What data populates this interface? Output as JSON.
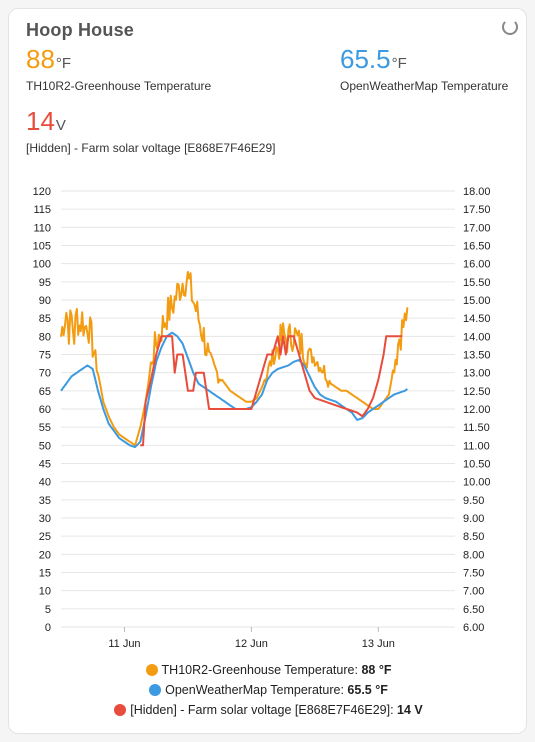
{
  "card": {
    "title": "Hoop House"
  },
  "entities": [
    {
      "value": "88",
      "unit": "°F",
      "label": "TH10R2-Greenhouse Temperature",
      "color": "#f39c12"
    },
    {
      "value": "65.5",
      "unit": "°F",
      "label": "OpenWeatherMap Temperature",
      "color": "#3b9ae1"
    },
    {
      "value": "14",
      "unit": "V",
      "label": "[Hidden] - Farm solar voltage [E868E7F46E29]",
      "color": "#e74c3c"
    }
  ],
  "legend": [
    {
      "name": "TH10R2-Greenhouse Temperature",
      "value": "88 °F",
      "color": "#f39c12"
    },
    {
      "name": "OpenWeatherMap Temperature",
      "value": "65.5 °F",
      "color": "#3b9ae1"
    },
    {
      "name": "[Hidden] - Farm solar voltage [E868E7F46E29]",
      "value": "14 V",
      "color": "#e74c3c"
    }
  ],
  "chart_data": {
    "type": "line",
    "x_unit": "hours since 10 Jun 12:00",
    "x_range": [
      0,
      74.5
    ],
    "x_ticks": [
      {
        "x": 12,
        "label": "11 Jun"
      },
      {
        "x": 36,
        "label": "12 Jun"
      },
      {
        "x": 60,
        "label": "13 Jun"
      }
    ],
    "y_left": {
      "min": 0,
      "max": 120,
      "step": 5,
      "ticks": [
        "0",
        "5",
        "10",
        "15",
        "20",
        "25",
        "30",
        "35",
        "40",
        "45",
        "50",
        "55",
        "60",
        "65",
        "70",
        "75",
        "80",
        "85",
        "90",
        "95",
        "100",
        "105",
        "110",
        "115",
        "120"
      ]
    },
    "y_right": {
      "min": 6,
      "max": 18,
      "step": 0.5,
      "ticks": [
        "6.00",
        "6.50",
        "7.00",
        "7.50",
        "8.00",
        "8.50",
        "9.00",
        "9.50",
        "10.00",
        "10.50",
        "11.00",
        "11.50",
        "12.00",
        "12.50",
        "13.00",
        "13.50",
        "14.00",
        "14.50",
        "15.00",
        "15.50",
        "16.00",
        "16.50",
        "17.00",
        "17.50",
        "18.00"
      ]
    },
    "grid": "horizontal",
    "series": [
      {
        "name": "TH10R2-Greenhouse Temperature",
        "axis": "left",
        "color": "#f39c12",
        "noisy": true,
        "points": [
          [
            0,
            80
          ],
          [
            0.5,
            84
          ],
          [
            1,
            87
          ],
          [
            1.5,
            82
          ],
          [
            2,
            85
          ],
          [
            2.5,
            80
          ],
          [
            3,
            86
          ],
          [
            3.5,
            83
          ],
          [
            4,
            85
          ],
          [
            4.5,
            82
          ],
          [
            5,
            84
          ],
          [
            6,
            78
          ],
          [
            7,
            70
          ],
          [
            8,
            62
          ],
          [
            9,
            58
          ],
          [
            10,
            55
          ],
          [
            11,
            53
          ],
          [
            12,
            52
          ],
          [
            13,
            51
          ],
          [
            14,
            50
          ],
          [
            15,
            55
          ],
          [
            16,
            62
          ],
          [
            17,
            72
          ],
          [
            18,
            78
          ],
          [
            19,
            82
          ],
          [
            20,
            86
          ],
          [
            21,
            88
          ],
          [
            22,
            92
          ],
          [
            23,
            95
          ],
          [
            24,
            96
          ],
          [
            25,
            90
          ],
          [
            26,
            85
          ],
          [
            27,
            80
          ],
          [
            28,
            74
          ],
          [
            29,
            71
          ],
          [
            30,
            69
          ],
          [
            31,
            67
          ],
          [
            32,
            65
          ],
          [
            33,
            64
          ],
          [
            34,
            63
          ],
          [
            35,
            62
          ],
          [
            36,
            62
          ],
          [
            37,
            63
          ],
          [
            38,
            66
          ],
          [
            39,
            70
          ],
          [
            40,
            74
          ],
          [
            41,
            77
          ],
          [
            42,
            80
          ],
          [
            43,
            79
          ],
          [
            44,
            81
          ],
          [
            45,
            78
          ],
          [
            46,
            77
          ],
          [
            47,
            75
          ],
          [
            48,
            74
          ],
          [
            49,
            72
          ],
          [
            50,
            70
          ],
          [
            51,
            67
          ],
          [
            52,
            66
          ],
          [
            53,
            65
          ],
          [
            54,
            65
          ],
          [
            55,
            64
          ],
          [
            56,
            63
          ],
          [
            57,
            62
          ],
          [
            58,
            61
          ],
          [
            59,
            60
          ],
          [
            60,
            60
          ],
          [
            61,
            62
          ],
          [
            62,
            64
          ],
          [
            63,
            72
          ],
          [
            64,
            80
          ],
          [
            65,
            84
          ],
          [
            65.5,
            88
          ]
        ]
      },
      {
        "name": "OpenWeatherMap Temperature",
        "axis": "left",
        "color": "#3b9ae1",
        "noisy": false,
        "points": [
          [
            0,
            65
          ],
          [
            1,
            67
          ],
          [
            2,
            69
          ],
          [
            3,
            70
          ],
          [
            4,
            71
          ],
          [
            5,
            72
          ],
          [
            6,
            71
          ],
          [
            7,
            65
          ],
          [
            8,
            60
          ],
          [
            9,
            56
          ],
          [
            10,
            54
          ],
          [
            11,
            52
          ],
          [
            12,
            51
          ],
          [
            13,
            50
          ],
          [
            14,
            49.5
          ],
          [
            15,
            51
          ],
          [
            16,
            58
          ],
          [
            17,
            66
          ],
          [
            18,
            73
          ],
          [
            19,
            77
          ],
          [
            20,
            80
          ],
          [
            21,
            81
          ],
          [
            22,
            80
          ],
          [
            23,
            78
          ],
          [
            24,
            74
          ],
          [
            25,
            70
          ],
          [
            26,
            67
          ],
          [
            27,
            66
          ],
          [
            28,
            65
          ],
          [
            29,
            64
          ],
          [
            30,
            63
          ],
          [
            31,
            62
          ],
          [
            32,
            61
          ],
          [
            33,
            60
          ],
          [
            34,
            60
          ],
          [
            35,
            60
          ],
          [
            36,
            60.5
          ],
          [
            37,
            62
          ],
          [
            38,
            64
          ],
          [
            39,
            68
          ],
          [
            40,
            70
          ],
          [
            41,
            71
          ],
          [
            42,
            71.5
          ],
          [
            43,
            72
          ],
          [
            44,
            73
          ],
          [
            45,
            73.5
          ],
          [
            46,
            72
          ],
          [
            47,
            69
          ],
          [
            48,
            66
          ],
          [
            49,
            64
          ],
          [
            50,
            63
          ],
          [
            51,
            62.5
          ],
          [
            52,
            62
          ],
          [
            53,
            61
          ],
          [
            54,
            60
          ],
          [
            55,
            59
          ],
          [
            56,
            57
          ],
          [
            57,
            57.5
          ],
          [
            58,
            59
          ],
          [
            59,
            60
          ],
          [
            60,
            61
          ],
          [
            61,
            62
          ],
          [
            62,
            63
          ],
          [
            63,
            64
          ],
          [
            64,
            64.5
          ],
          [
            65,
            65
          ],
          [
            65.5,
            65.5
          ]
        ]
      }
    ],
    "voltage_series": {
      "name": "[Hidden] - Farm solar voltage [E868E7F46E29]",
      "axis": "right",
      "color": "#e74c3c",
      "points": [
        [
          15,
          11
        ],
        [
          15.5,
          11
        ],
        [
          16,
          12.2
        ],
        [
          17,
          12.8
        ],
        [
          18,
          13.5
        ],
        [
          19,
          14
        ],
        [
          21,
          14
        ],
        [
          21.5,
          13
        ],
        [
          22,
          13.5
        ],
        [
          23,
          13.5
        ],
        [
          23.5,
          13
        ],
        [
          24,
          12.5
        ],
        [
          25,
          12.5
        ],
        [
          25.5,
          13
        ],
        [
          27,
          13
        ],
        [
          27.5,
          12.5
        ],
        [
          28,
          12
        ],
        [
          30,
          12
        ],
        [
          36,
          12
        ],
        [
          37,
          12.5
        ],
        [
          38,
          13
        ],
        [
          39,
          13.5
        ],
        [
          40,
          13.5
        ],
        [
          41,
          14
        ],
        [
          41.5,
          13.5
        ],
        [
          42,
          14
        ],
        [
          42.5,
          13.5
        ],
        [
          43,
          14
        ],
        [
          44,
          14
        ],
        [
          45,
          13.5
        ],
        [
          46,
          13
        ],
        [
          47,
          12.5
        ],
        [
          48,
          12.3
        ],
        [
          50,
          12.2
        ],
        [
          52,
          12.1
        ],
        [
          54,
          12
        ],
        [
          56,
          11.9
        ],
        [
          57,
          11.8
        ],
        [
          58,
          12
        ],
        [
          59,
          12.3
        ],
        [
          60,
          12.8
        ],
        [
          61,
          13.5
        ],
        [
          61.5,
          14
        ],
        [
          62,
          14
        ],
        [
          63,
          14
        ],
        [
          64,
          14
        ],
        [
          64.5,
          14
        ]
      ]
    }
  }
}
